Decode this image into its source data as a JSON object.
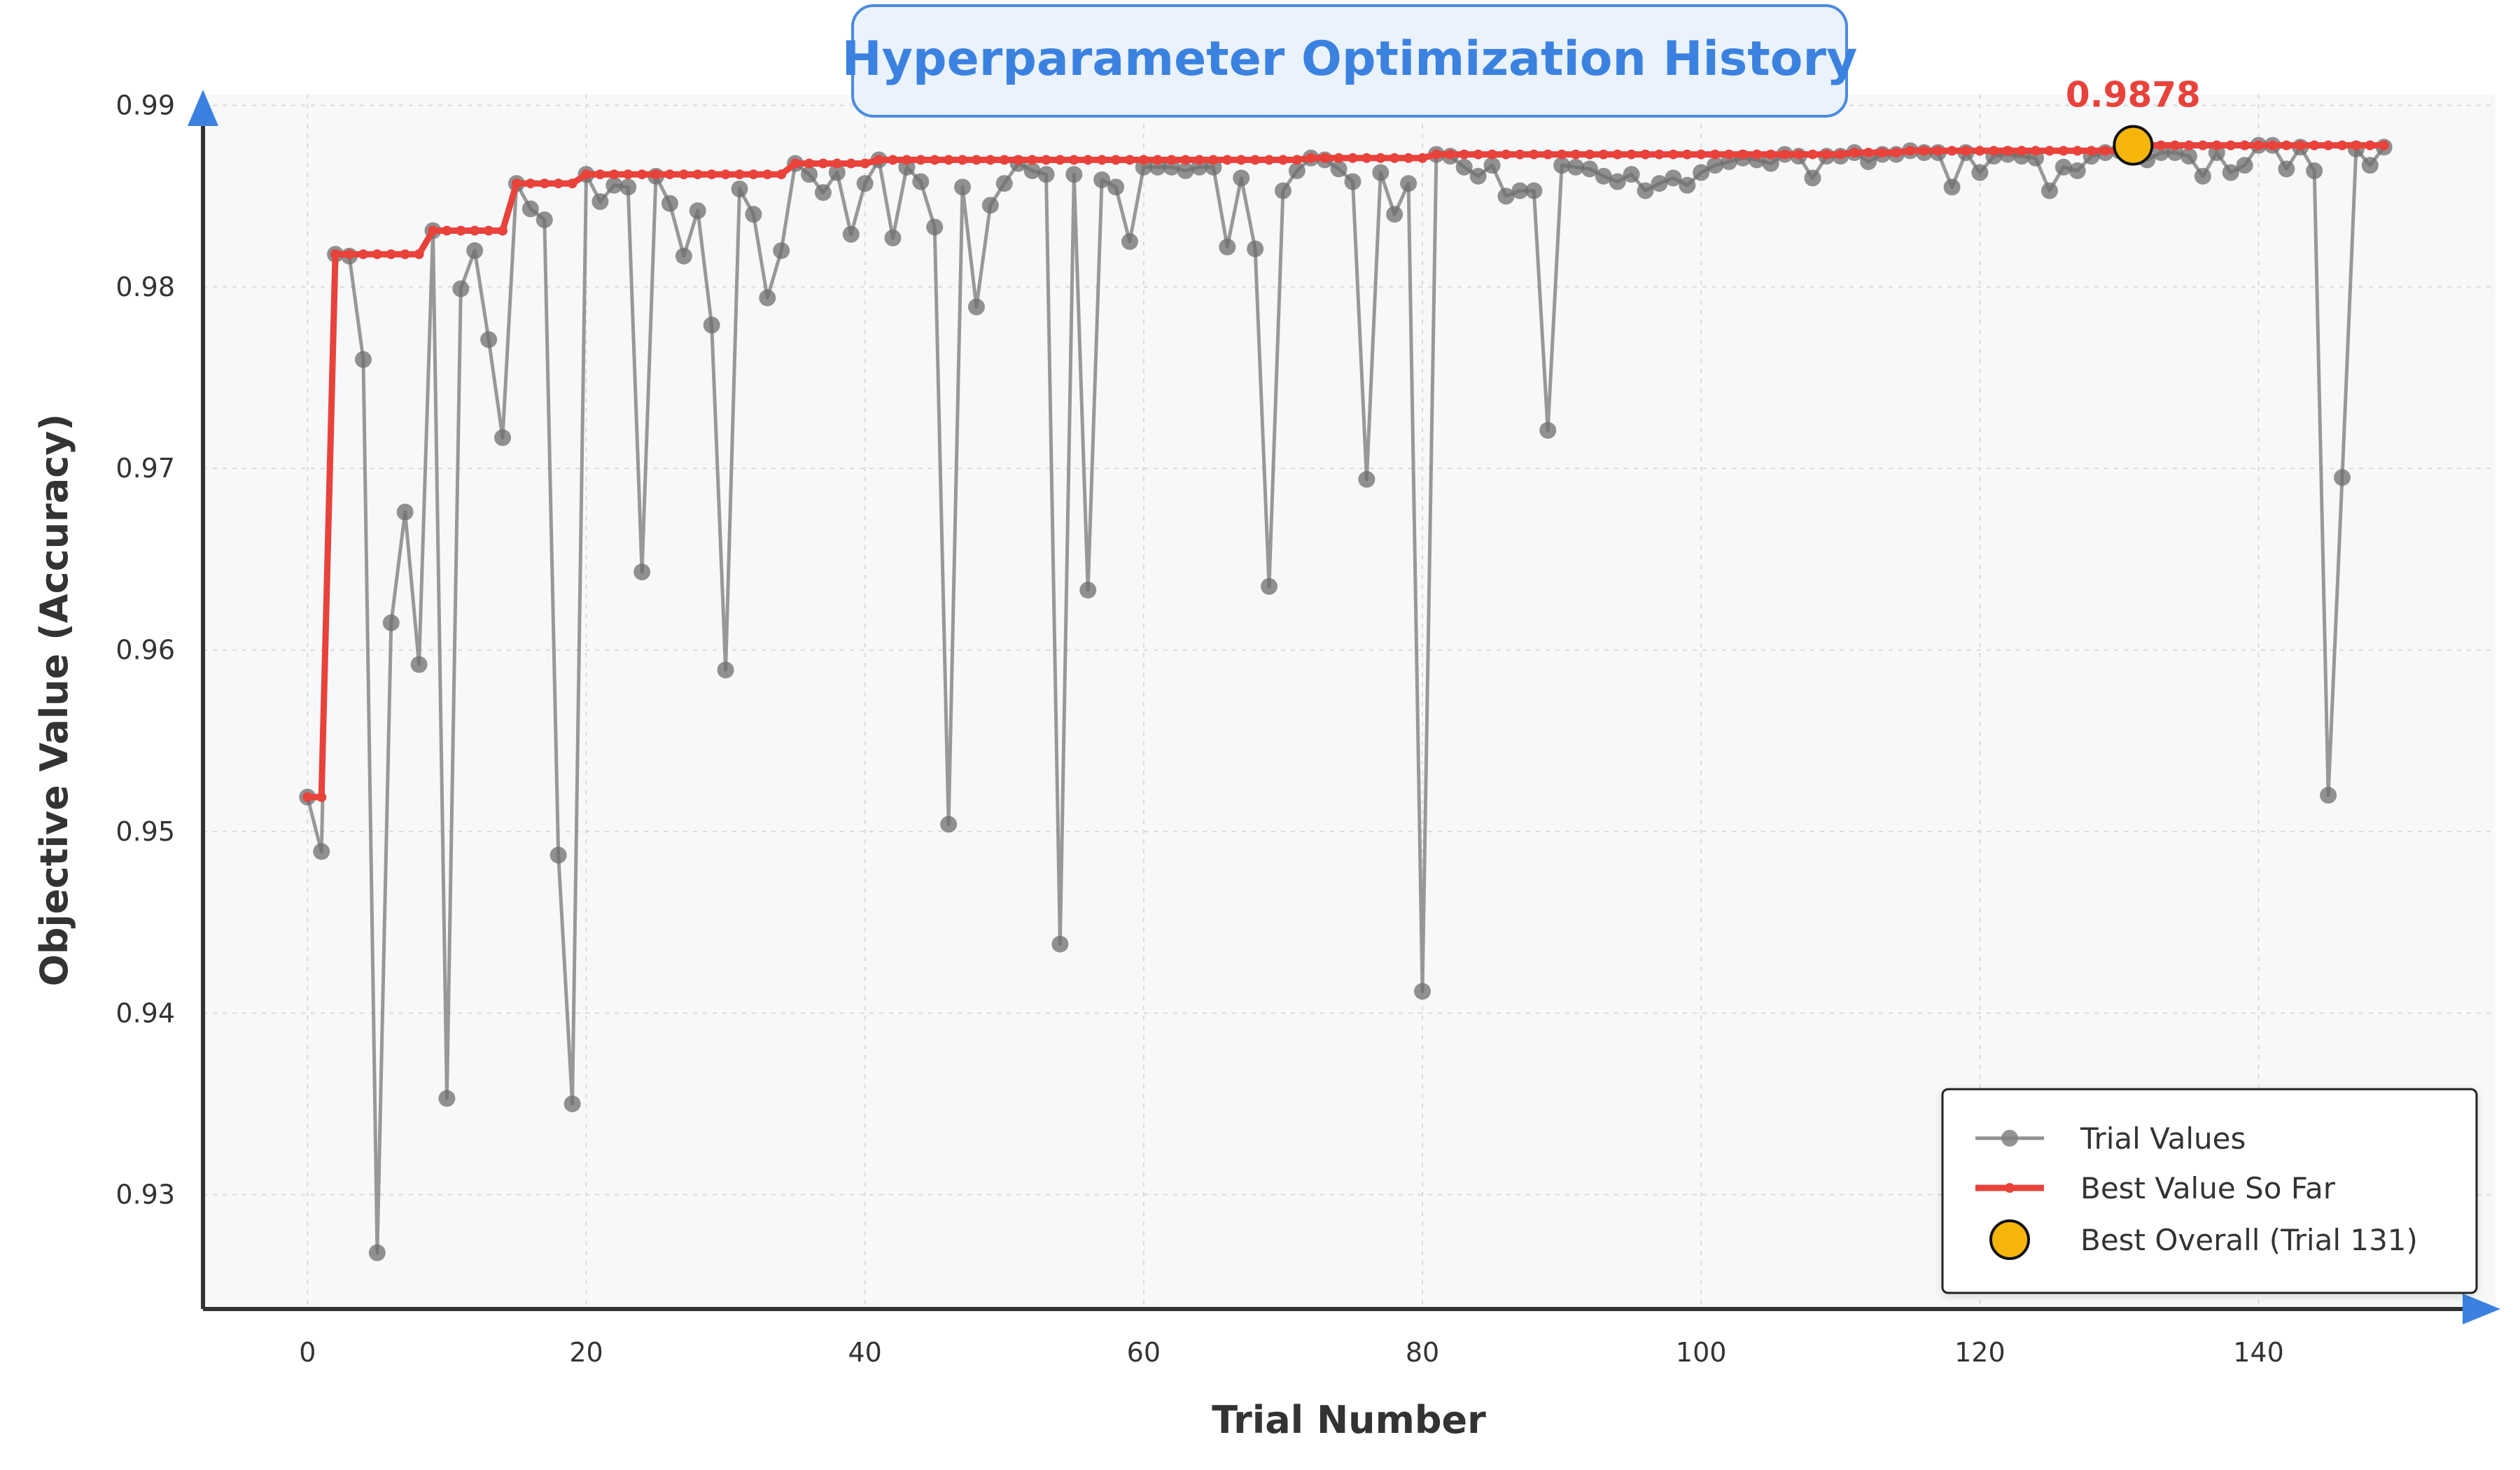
{
  "chart_data": {
    "type": "line",
    "title": "Hyperparameter Optimization History",
    "xlabel": "Trial Number",
    "ylabel": "Objective Value (Accuracy)",
    "xlim": [
      -7.5,
      157
    ],
    "ylim": [
      0.9237,
      0.9906
    ],
    "xticks": [
      0,
      20,
      40,
      60,
      80,
      100,
      120,
      140
    ],
    "yticks": [
      0.93,
      0.94,
      0.95,
      0.96,
      0.97,
      0.98,
      0.99
    ],
    "xtick_labels": [
      "0",
      "20",
      "40",
      "60",
      "80",
      "100",
      "120",
      "140"
    ],
    "ytick_labels": [
      "0.93",
      "0.94",
      "0.95",
      "0.96",
      "0.97",
      "0.98",
      "0.99"
    ],
    "grid": true,
    "legend_position": "bottom-right",
    "best": {
      "trial": 131,
      "value": 0.9878,
      "label": "0.9878"
    },
    "legend": [
      {
        "key": "trials",
        "label": "Trial Values"
      },
      {
        "key": "best",
        "label": "Best Value So Far"
      },
      {
        "key": "overall",
        "label": "Best Overall (Trial 131)"
      }
    ],
    "colors": {
      "trials": "#808080",
      "best": "#e8423b",
      "overall": "#f5b50a",
      "title": "#3b82e0",
      "axis_arrow": "#3b82e0"
    },
    "series": [
      {
        "name": "Trial Values",
        "values": [
          0.9519,
          0.9489,
          0.9818,
          0.9817,
          0.976,
          0.9268,
          0.9615,
          0.9676,
          0.9592,
          0.9831,
          0.9353,
          0.9799,
          0.982,
          0.9771,
          0.9717,
          0.9857,
          0.9843,
          0.9837,
          0.9487,
          0.935,
          0.9862,
          0.9847,
          0.9856,
          0.9855,
          0.9643,
          0.9861,
          0.9846,
          0.9817,
          0.9842,
          0.9779,
          0.9589,
          0.9854,
          0.984,
          0.9794,
          0.982,
          0.9868,
          0.9862,
          0.9852,
          0.9863,
          0.9829,
          0.9857,
          0.987,
          0.9827,
          0.9866,
          0.9858,
          0.9833,
          0.9504,
          0.9855,
          0.9789,
          0.9845,
          0.9857,
          0.9868,
          0.9864,
          0.9862,
          0.9438,
          0.9862,
          0.9633,
          0.9859,
          0.9855,
          0.9825,
          0.9866,
          0.9866,
          0.9866,
          0.9864,
          0.9866,
          0.9866,
          0.9822,
          0.986,
          0.9821,
          0.9635,
          0.9853,
          0.9864,
          0.9871,
          0.987,
          0.9865,
          0.9858,
          0.9694,
          0.9863,
          0.984,
          0.9857,
          0.9412,
          0.9873,
          0.9872,
          0.9866,
          0.9861,
          0.9867,
          0.985,
          0.9853,
          0.9853,
          0.9721,
          0.9867,
          0.9866,
          0.9865,
          0.9861,
          0.9858,
          0.9862,
          0.9853,
          0.9857,
          0.986,
          0.9856,
          0.9863,
          0.9867,
          0.9869,
          0.9871,
          0.987,
          0.9868,
          0.9873,
          0.9872,
          0.986,
          0.9872,
          0.9872,
          0.9874,
          0.9869,
          0.9873,
          0.9873,
          0.9875,
          0.9874,
          0.9874,
          0.9855,
          0.9874,
          0.9863,
          0.9872,
          0.9873,
          0.9872,
          0.9871,
          0.9853,
          0.9866,
          0.9864,
          0.9872,
          0.9874,
          0.9875,
          0.9878,
          0.987,
          0.9874,
          0.9874,
          0.9872,
          0.9861,
          0.9874,
          0.9863,
          0.9867,
          0.9878,
          0.9878,
          0.9865,
          0.9877,
          0.9864,
          0.952,
          0.9695,
          0.9876,
          0.9867,
          0.9877
        ]
      },
      {
        "name": "Best Value So Far",
        "values": [
          0.9519,
          0.9519,
          0.9818,
          0.9818,
          0.9818,
          0.9818,
          0.9818,
          0.9818,
          0.9818,
          0.9831,
          0.9831,
          0.9831,
          0.9831,
          0.9831,
          0.9831,
          0.9857,
          0.9857,
          0.9857,
          0.9857,
          0.9857,
          0.9862,
          0.9862,
          0.9862,
          0.9862,
          0.9862,
          0.9862,
          0.9862,
          0.9862,
          0.9862,
          0.9862,
          0.9862,
          0.9862,
          0.9862,
          0.9862,
          0.9862,
          0.9868,
          0.9868,
          0.9868,
          0.9868,
          0.9868,
          0.9868,
          0.987,
          0.987,
          0.987,
          0.987,
          0.987,
          0.987,
          0.987,
          0.987,
          0.987,
          0.987,
          0.987,
          0.987,
          0.987,
          0.987,
          0.987,
          0.987,
          0.987,
          0.987,
          0.987,
          0.987,
          0.987,
          0.987,
          0.987,
          0.987,
          0.987,
          0.987,
          0.987,
          0.987,
          0.987,
          0.987,
          0.987,
          0.9871,
          0.9871,
          0.9871,
          0.9871,
          0.9871,
          0.9871,
          0.9871,
          0.9871,
          0.9871,
          0.9873,
          0.9873,
          0.9873,
          0.9873,
          0.9873,
          0.9873,
          0.9873,
          0.9873,
          0.9873,
          0.9873,
          0.9873,
          0.9873,
          0.9873,
          0.9873,
          0.9873,
          0.9873,
          0.9873,
          0.9873,
          0.9873,
          0.9873,
          0.9873,
          0.9873,
          0.9873,
          0.9873,
          0.9873,
          0.9873,
          0.9873,
          0.9873,
          0.9873,
          0.9873,
          0.9874,
          0.9874,
          0.9874,
          0.9874,
          0.9875,
          0.9875,
          0.9875,
          0.9875,
          0.9875,
          0.9875,
          0.9875,
          0.9875,
          0.9875,
          0.9875,
          0.9875,
          0.9875,
          0.9875,
          0.9875,
          0.9875,
          0.9875,
          0.9878,
          0.9878,
          0.9878,
          0.9878,
          0.9878,
          0.9878,
          0.9878,
          0.9878,
          0.9878,
          0.9878,
          0.9878,
          0.9878,
          0.9878,
          0.9878,
          0.9878,
          0.9878,
          0.9878,
          0.9878,
          0.9878
        ]
      }
    ]
  }
}
